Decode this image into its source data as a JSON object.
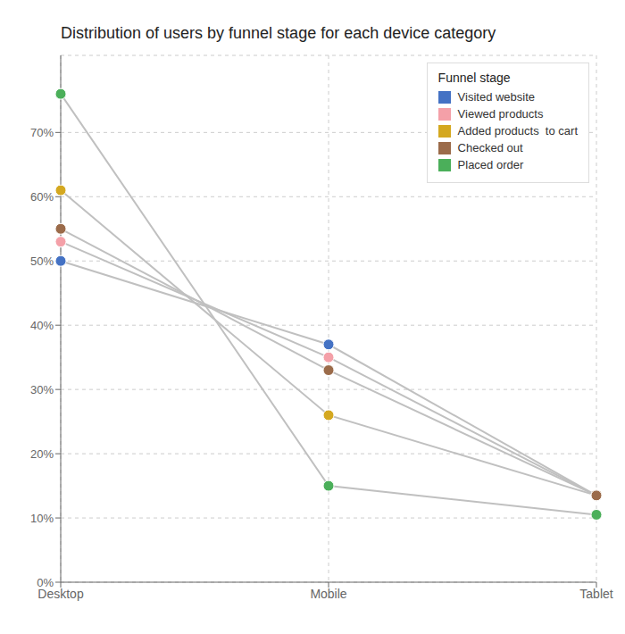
{
  "chart_data": {
    "type": "line",
    "title": "Distribution of users by funnel stage for each device category",
    "categories": [
      "Desktop",
      "Mobile",
      "Tablet"
    ],
    "series": [
      {
        "name": "Visited website",
        "color": "#4472C4",
        "values": [
          0.5,
          0.37,
          0.135
        ]
      },
      {
        "name": "Viewed products",
        "color": "#F4A0A8",
        "values": [
          0.53,
          0.35,
          0.135
        ]
      },
      {
        "name": "Added products  to cart",
        "color": "#D4A820",
        "values": [
          0.61,
          0.26,
          0.135
        ]
      },
      {
        "name": "Checked out",
        "color": "#9B6B4A",
        "values": [
          0.55,
          0.33,
          0.135
        ]
      },
      {
        "name": "Placed order",
        "color": "#4BAF5A",
        "values": [
          0.76,
          0.15,
          0.105
        ]
      }
    ],
    "color": "#C0C0C0",
    "marker": "circle",
    "ylim": [
      0.0,
      0.82
    ],
    "yticks": [
      {
        "value": 0.0,
        "label": "0%"
      },
      {
        "value": 0.1,
        "label": "10%"
      },
      {
        "value": 0.2,
        "label": "20%"
      },
      {
        "value": 0.3,
        "label": "30%"
      },
      {
        "value": 0.4,
        "label": "40%"
      },
      {
        "value": 0.5,
        "label": "50%"
      },
      {
        "value": 0.6,
        "label": "60%"
      },
      {
        "value": 0.7,
        "label": "70%"
      }
    ],
    "grid": true,
    "legend": "upper right",
    "legend_title": "Funnel stage"
  }
}
